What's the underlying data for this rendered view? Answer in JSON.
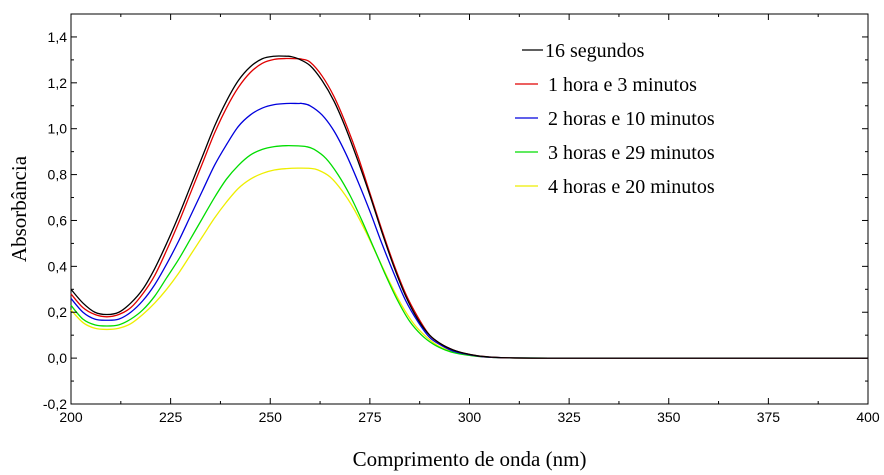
{
  "chart_data": {
    "type": "line",
    "title": "",
    "xlabel": "Comprimento de onda (nm)",
    "ylabel": "Absorbância",
    "xlim": [
      200,
      400
    ],
    "ylim": [
      -0.2,
      1.5
    ],
    "xticks": [
      200,
      225,
      250,
      275,
      300,
      325,
      350,
      375,
      400
    ],
    "xtick_labels": [
      "200",
      "225",
      "250",
      "275",
      "300",
      "325",
      "350",
      "375",
      "400"
    ],
    "yticks": [
      -0.2,
      0.0,
      0.2,
      0.4,
      0.6,
      0.8,
      1.0,
      1.2,
      1.4
    ],
    "ytick_labels": [
      "-0,2",
      "0,0",
      "0,2",
      "0,4",
      "0,6",
      "0,8",
      "1,0",
      "1,2",
      "1,4"
    ],
    "grid": false,
    "legend_position": "top-right",
    "series": [
      {
        "name": "16 segundos",
        "color": "#000000",
        "x": [
          200,
          203,
          206,
          209,
          212,
          215,
          218,
          221,
          224,
          227,
          230,
          233,
          236,
          239,
          242,
          245,
          248,
          251,
          254,
          255,
          257,
          260,
          263,
          266,
          269,
          272,
          275,
          278,
          281,
          284,
          287,
          290,
          293,
          296,
          299,
          302,
          305,
          310,
          320,
          340,
          360,
          380,
          400
        ],
        "y": [
          0.3,
          0.24,
          0.2,
          0.19,
          0.2,
          0.24,
          0.3,
          0.39,
          0.5,
          0.62,
          0.75,
          0.88,
          1.01,
          1.12,
          1.21,
          1.27,
          1.305,
          1.316,
          1.316,
          1.315,
          1.305,
          1.275,
          1.21,
          1.12,
          1.0,
          0.86,
          0.71,
          0.55,
          0.4,
          0.27,
          0.17,
          0.1,
          0.06,
          0.035,
          0.02,
          0.01,
          0.005,
          0.001,
          0.0,
          0.0,
          0.0,
          0.0,
          0.0
        ]
      },
      {
        "name": "1 hora e 3 minutos",
        "color": "#e00000",
        "x": [
          200,
          203,
          206,
          209,
          212,
          215,
          218,
          221,
          224,
          227,
          230,
          233,
          236,
          239,
          242,
          245,
          248,
          251,
          254,
          257,
          258,
          260,
          263,
          266,
          269,
          272,
          275,
          278,
          281,
          284,
          287,
          290,
          293,
          296,
          299,
          302,
          305,
          310,
          320,
          340,
          360,
          380,
          400
        ],
        "y": [
          0.28,
          0.22,
          0.19,
          0.18,
          0.19,
          0.22,
          0.28,
          0.36,
          0.47,
          0.59,
          0.72,
          0.85,
          0.98,
          1.09,
          1.18,
          1.245,
          1.285,
          1.302,
          1.306,
          1.305,
          1.303,
          1.29,
          1.23,
          1.14,
          1.02,
          0.88,
          0.72,
          0.56,
          0.41,
          0.28,
          0.18,
          0.1,
          0.06,
          0.035,
          0.02,
          0.01,
          0.005,
          0.001,
          0.0,
          0.0,
          0.0,
          0.0,
          0.0
        ]
      },
      {
        "name": "2 horas e 10 minutos",
        "color": "#0000dd",
        "x": [
          200,
          203,
          206,
          209,
          212,
          215,
          218,
          221,
          224,
          227,
          230,
          233,
          236,
          239,
          242,
          245,
          248,
          251,
          254,
          257,
          258,
          260,
          263,
          266,
          269,
          272,
          275,
          278,
          281,
          284,
          287,
          290,
          293,
          296,
          299,
          302,
          305,
          310,
          320,
          340,
          360,
          380,
          400
        ],
        "y": [
          0.26,
          0.2,
          0.17,
          0.165,
          0.17,
          0.2,
          0.25,
          0.32,
          0.41,
          0.51,
          0.62,
          0.73,
          0.84,
          0.93,
          1.01,
          1.06,
          1.09,
          1.105,
          1.11,
          1.11,
          1.11,
          1.1,
          1.06,
          0.99,
          0.89,
          0.77,
          0.64,
          0.5,
          0.37,
          0.25,
          0.16,
          0.09,
          0.055,
          0.03,
          0.018,
          0.009,
          0.004,
          0.001,
          0.0,
          0.0,
          0.0,
          0.0,
          0.0
        ]
      },
      {
        "name": "3 horas e 29 minutos",
        "color": "#00dd00",
        "x": [
          200,
          203,
          206,
          209,
          212,
          215,
          218,
          221,
          224,
          227,
          230,
          233,
          236,
          239,
          242,
          245,
          248,
          251,
          254,
          257,
          259,
          261,
          264,
          267,
          270,
          273,
          276,
          279,
          282,
          285,
          288,
          291,
          294,
          297,
          300,
          303,
          306,
          310,
          320,
          340,
          360,
          380,
          400
        ],
        "y": [
          0.23,
          0.17,
          0.145,
          0.14,
          0.145,
          0.17,
          0.21,
          0.27,
          0.35,
          0.43,
          0.52,
          0.61,
          0.7,
          0.78,
          0.84,
          0.885,
          0.91,
          0.922,
          0.926,
          0.925,
          0.922,
          0.91,
          0.87,
          0.8,
          0.71,
          0.6,
          0.48,
          0.36,
          0.25,
          0.16,
          0.1,
          0.06,
          0.035,
          0.02,
          0.012,
          0.006,
          0.003,
          0.001,
          0.0,
          0.0,
          0.0,
          0.0,
          0.0
        ]
      },
      {
        "name": "4 horas e 20 minutos",
        "color": "#eeee00",
        "x": [
          200,
          203,
          206,
          209,
          212,
          215,
          218,
          221,
          224,
          227,
          230,
          233,
          236,
          239,
          242,
          245,
          248,
          251,
          254,
          257,
          260,
          262,
          265,
          268,
          271,
          274,
          277,
          280,
          283,
          286,
          289,
          292,
          295,
          298,
          301,
          304,
          307,
          310,
          320,
          340,
          360,
          380,
          400
        ],
        "y": [
          0.21,
          0.155,
          0.13,
          0.125,
          0.13,
          0.15,
          0.19,
          0.24,
          0.3,
          0.37,
          0.45,
          0.53,
          0.61,
          0.68,
          0.74,
          0.78,
          0.805,
          0.82,
          0.826,
          0.828,
          0.827,
          0.82,
          0.79,
          0.73,
          0.65,
          0.55,
          0.44,
          0.33,
          0.23,
          0.15,
          0.095,
          0.055,
          0.032,
          0.018,
          0.01,
          0.005,
          0.002,
          0.001,
          0.0,
          0.0,
          0.0,
          0.0,
          0.0
        ]
      }
    ]
  }
}
